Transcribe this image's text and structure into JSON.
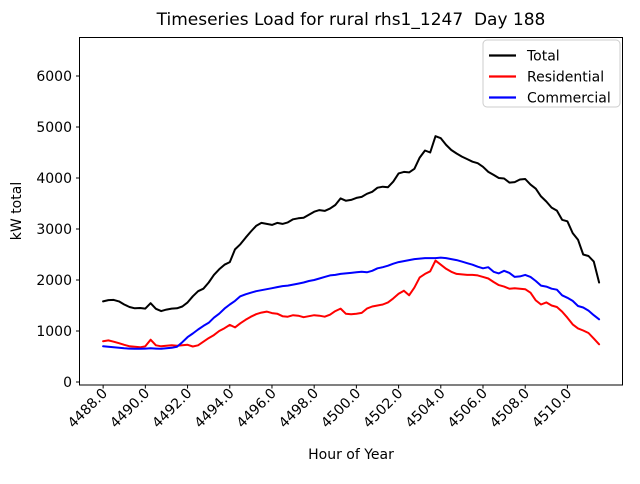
{
  "chart_data": {
    "type": "line",
    "title": "Timeseries Load for rural rhs1_1247  Day 188",
    "xlabel": "Hour of Year",
    "ylabel": "kW total",
    "grid": false,
    "x_start": 4488.0,
    "x_step": 0.25,
    "xlim": [
      4486.88,
      4512.61
    ],
    "ylim": [
      -59,
      6755
    ],
    "x_tick_values": [
      4488,
      4490,
      4492,
      4494,
      4496,
      4498,
      4500,
      4502,
      4504,
      4506,
      4508,
      4510
    ],
    "x_tick_labels": [
      "4488.0",
      "4490.0",
      "4492.0",
      "4494.0",
      "4496.0",
      "4498.0",
      "4500.0",
      "4502.0",
      "4504.0",
      "4506.0",
      "4508.0",
      "4510.0"
    ],
    "x_tick_rotation": 45,
    "y_tick_values": [
      0,
      1000,
      2000,
      3000,
      4000,
      5000,
      6000
    ],
    "y_tick_labels": [
      "0",
      "1000",
      "2000",
      "3000",
      "4000",
      "5000",
      "6000"
    ],
    "legend": {
      "position": "upper right",
      "frame_color": "#cccccc"
    },
    "series": [
      {
        "name": "Total",
        "color": "#000000",
        "values": [
          1580,
          1605,
          1610,
          1580,
          1520,
          1470,
          1445,
          1450,
          1440,
          1545,
          1435,
          1390,
          1420,
          1440,
          1445,
          1480,
          1560,
          1680,
          1780,
          1830,
          1950,
          2100,
          2210,
          2300,
          2350,
          2600,
          2700,
          2830,
          2950,
          3060,
          3120,
          3100,
          3080,
          3120,
          3100,
          3130,
          3190,
          3210,
          3220,
          3280,
          3340,
          3370,
          3355,
          3400,
          3470,
          3600,
          3555,
          3570,
          3610,
          3630,
          3690,
          3730,
          3810,
          3830,
          3820,
          3930,
          4090,
          4120,
          4110,
          4180,
          4400,
          4540,
          4500,
          4820,
          4780,
          4650,
          4550,
          4480,
          4420,
          4370,
          4320,
          4290,
          4220,
          4120,
          4060,
          4000,
          3990,
          3910,
          3920,
          3970,
          3980,
          3870,
          3790,
          3640,
          3540,
          3420,
          3360,
          3180,
          3150,
          2920,
          2790,
          2500,
          2470,
          2360,
          1950
        ]
      },
      {
        "name": "Residential",
        "color": "#ff0000",
        "values": [
          800,
          815,
          790,
          760,
          730,
          700,
          690,
          680,
          700,
          830,
          720,
          700,
          710,
          720,
          710,
          720,
          730,
          695,
          720,
          790,
          860,
          920,
          1000,
          1055,
          1120,
          1070,
          1150,
          1220,
          1280,
          1330,
          1360,
          1380,
          1350,
          1340,
          1290,
          1280,
          1310,
          1300,
          1270,
          1290,
          1310,
          1300,
          1280,
          1320,
          1390,
          1440,
          1340,
          1330,
          1340,
          1355,
          1440,
          1480,
          1500,
          1520,
          1560,
          1640,
          1730,
          1790,
          1700,
          1850,
          2050,
          2120,
          2170,
          2380,
          2300,
          2220,
          2160,
          2120,
          2110,
          2100,
          2100,
          2090,
          2060,
          2030,
          1960,
          1900,
          1870,
          1830,
          1840,
          1830,
          1820,
          1750,
          1600,
          1520,
          1560,
          1500,
          1470,
          1380,
          1260,
          1130,
          1050,
          1010,
          960,
          850,
          740
        ]
      },
      {
        "name": "Commercial",
        "color": "#0000ff",
        "values": [
          700,
          690,
          680,
          670,
          660,
          655,
          650,
          650,
          655,
          660,
          655,
          650,
          660,
          670,
          690,
          780,
          880,
          950,
          1030,
          1100,
          1160,
          1260,
          1340,
          1440,
          1520,
          1590,
          1680,
          1720,
          1750,
          1780,
          1800,
          1820,
          1840,
          1860,
          1880,
          1890,
          1910,
          1930,
          1950,
          1980,
          2000,
          2030,
          2060,
          2090,
          2100,
          2120,
          2130,
          2140,
          2150,
          2160,
          2150,
          2180,
          2230,
          2250,
          2280,
          2320,
          2350,
          2370,
          2390,
          2410,
          2420,
          2430,
          2430,
          2430,
          2440,
          2430,
          2410,
          2390,
          2360,
          2330,
          2300,
          2260,
          2230,
          2250,
          2160,
          2130,
          2180,
          2140,
          2060,
          2070,
          2100,
          2060,
          1980,
          1890,
          1870,
          1830,
          1810,
          1700,
          1650,
          1590,
          1490,
          1460,
          1400,
          1310,
          1230
        ]
      }
    ]
  }
}
